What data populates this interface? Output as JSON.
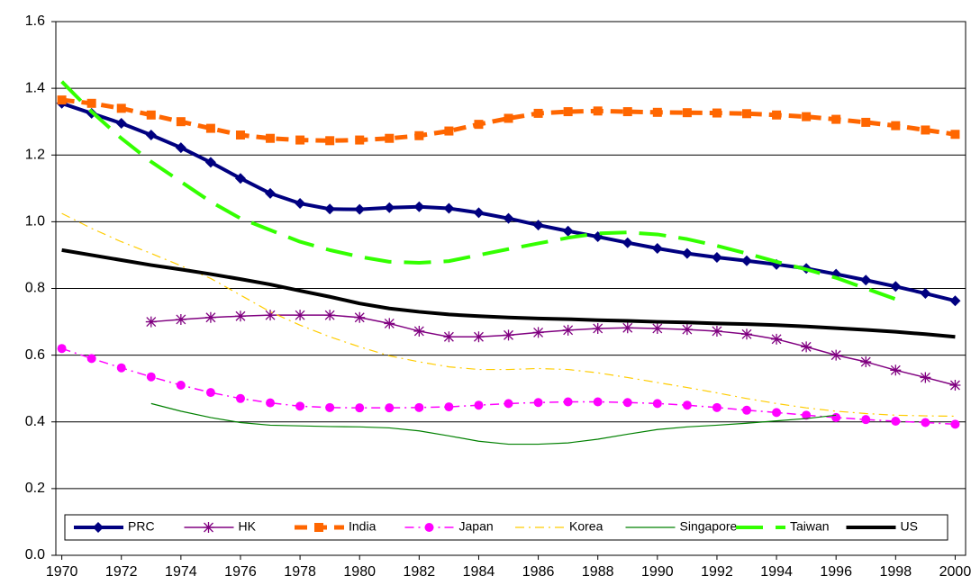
{
  "chart_data": {
    "type": "line",
    "x": [
      1970,
      1971,
      1972,
      1973,
      1974,
      1975,
      1976,
      1977,
      1978,
      1979,
      1980,
      1981,
      1982,
      1983,
      1984,
      1985,
      1986,
      1987,
      1988,
      1989,
      1990,
      1991,
      1992,
      1993,
      1994,
      1995,
      1996,
      1997,
      1998,
      1999,
      2000
    ],
    "series": [
      {
        "name": "PRC",
        "color": "#000080",
        "marker": "diamond",
        "line_style": "solid",
        "width": 4,
        "values": [
          1.355,
          1.325,
          1.295,
          1.26,
          1.222,
          1.178,
          1.13,
          1.085,
          1.055,
          1.038,
          1.037,
          1.042,
          1.045,
          1.04,
          1.027,
          1.01,
          0.99,
          0.972,
          0.955,
          0.937,
          0.92,
          0.905,
          0.893,
          0.883,
          0.872,
          0.86,
          0.843,
          0.825,
          0.806,
          0.785,
          0.763
        ]
      },
      {
        "name": "HK",
        "color": "#800080",
        "marker": "asterisk",
        "line_style": "solid",
        "width": 1.5,
        "values": [
          null,
          null,
          null,
          0.7,
          0.707,
          0.713,
          0.717,
          0.72,
          0.72,
          0.72,
          0.713,
          0.695,
          0.672,
          0.655,
          0.655,
          0.66,
          0.668,
          0.675,
          0.68,
          0.682,
          0.68,
          0.677,
          0.672,
          0.663,
          0.648,
          0.625,
          0.6,
          0.58,
          0.555,
          0.533,
          0.51
        ]
      },
      {
        "name": "India",
        "color": "#ff6600",
        "marker": "square",
        "line_style": "dashed",
        "width": 5,
        "values": [
          1.365,
          1.355,
          1.34,
          1.32,
          1.3,
          1.28,
          1.26,
          1.25,
          1.245,
          1.243,
          1.245,
          1.25,
          1.258,
          1.272,
          1.292,
          1.31,
          1.325,
          1.33,
          1.332,
          1.33,
          1.328,
          1.327,
          1.326,
          1.324,
          1.32,
          1.315,
          1.307,
          1.298,
          1.288,
          1.275,
          1.262
        ]
      },
      {
        "name": "Japan",
        "color": "#ff00ff",
        "marker": "circle",
        "line_style": "dash-dot",
        "width": 1.5,
        "values": [
          0.62,
          0.59,
          0.562,
          0.535,
          0.51,
          0.488,
          0.47,
          0.457,
          0.447,
          0.443,
          0.442,
          0.442,
          0.443,
          0.445,
          0.45,
          0.455,
          0.458,
          0.46,
          0.46,
          0.458,
          0.455,
          0.45,
          0.443,
          0.435,
          0.428,
          0.42,
          0.413,
          0.407,
          0.402,
          0.398,
          0.393
        ]
      },
      {
        "name": "Korea",
        "color": "#ffcc00",
        "marker": "none",
        "line_style": "dash-dot",
        "width": 1.2,
        "values": [
          1.025,
          0.98,
          0.94,
          0.905,
          0.868,
          0.83,
          0.78,
          0.73,
          0.69,
          0.655,
          0.625,
          0.598,
          0.58,
          0.565,
          0.557,
          0.557,
          0.56,
          0.557,
          0.547,
          0.533,
          0.518,
          0.503,
          0.487,
          0.47,
          0.455,
          0.442,
          0.432,
          0.425,
          0.42,
          0.418,
          0.417
        ]
      },
      {
        "name": "Singapore",
        "color": "#008000",
        "marker": "none",
        "line_style": "solid",
        "width": 1.2,
        "values": [
          null,
          null,
          null,
          0.455,
          0.432,
          0.413,
          0.398,
          0.39,
          0.388,
          0.386,
          0.385,
          0.382,
          0.373,
          0.358,
          0.342,
          0.333,
          0.333,
          0.337,
          0.348,
          0.363,
          0.377,
          0.385,
          0.39,
          0.396,
          0.403,
          0.41,
          0.42,
          null,
          null,
          null,
          null
        ]
      },
      {
        "name": "Taiwan",
        "color": "#33ff00",
        "marker": "none",
        "line_style": "long-dash",
        "width": 4,
        "values": [
          1.42,
          1.33,
          1.25,
          1.18,
          1.12,
          1.06,
          1.01,
          0.975,
          0.94,
          0.915,
          0.895,
          0.88,
          0.877,
          0.882,
          0.9,
          0.918,
          0.935,
          0.952,
          0.965,
          0.968,
          0.962,
          0.948,
          0.928,
          0.905,
          0.88,
          0.857,
          0.832,
          0.8,
          0.768,
          null,
          null
        ]
      },
      {
        "name": "US",
        "color": "#000000",
        "marker": "none",
        "line_style": "solid",
        "width": 4,
        "values": [
          0.915,
          0.9,
          0.885,
          0.87,
          0.857,
          0.843,
          0.828,
          0.812,
          0.793,
          0.775,
          0.755,
          0.74,
          0.73,
          0.722,
          0.717,
          0.713,
          0.71,
          0.708,
          0.705,
          0.703,
          0.7,
          0.698,
          0.695,
          0.693,
          0.69,
          0.686,
          0.681,
          0.676,
          0.67,
          0.663,
          0.655
        ]
      }
    ],
    "xlim": [
      1969.8,
      2000.35
    ],
    "xticks": [
      1970,
      1972,
      1974,
      1976,
      1978,
      1980,
      1982,
      1984,
      1986,
      1988,
      1990,
      1992,
      1994,
      1996,
      1998,
      2000
    ],
    "ylim": [
      0,
      1.6
    ],
    "yticks": [
      {
        "value": 0,
        "label": "0.0"
      },
      {
        "value": 0.2,
        "label": "0.2"
      },
      {
        "value": 0.4,
        "label": "0.4"
      },
      {
        "value": 0.6,
        "label": "0.6"
      },
      {
        "value": 0.8,
        "label": "0.8"
      },
      {
        "value": 1.0,
        "label": "1.0"
      },
      {
        "value": 1.2,
        "label": "1.2"
      },
      {
        "value": 1.4,
        "label": "1.4"
      },
      {
        "value": 1.6,
        "label": "1.6"
      }
    ],
    "grid": true,
    "legend": "bottom"
  }
}
